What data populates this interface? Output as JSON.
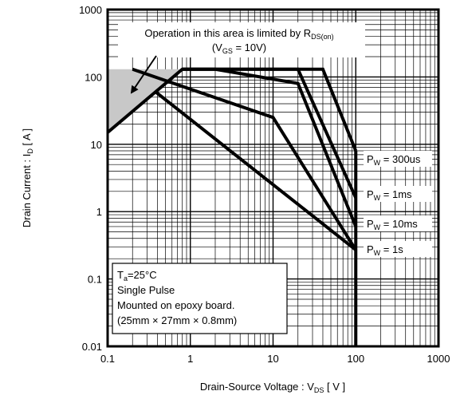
{
  "chart_data": {
    "type": "line",
    "title": "",
    "xlabel": {
      "main": "Drain-Source  Voltage : V",
      "sub": "DS",
      "unit": " [ V ]"
    },
    "ylabel": {
      "main": "Drain  Current  :  I",
      "sub": "D",
      "unit": "  [ A ]"
    },
    "xscale": "log",
    "yscale": "log",
    "xlim": [
      0.1,
      1000
    ],
    "ylim": [
      0.01,
      1000
    ],
    "grid": true,
    "x_ticks": [
      0.1,
      1,
      10,
      100,
      1000
    ],
    "x_tick_labels": [
      "0.1",
      "1",
      "10",
      "100",
      "1000"
    ],
    "y_ticks": [
      0.01,
      0.1,
      1,
      10,
      100,
      1000
    ],
    "y_tick_labels": [
      "0.01",
      "0.1",
      "1",
      "10",
      "100",
      "1000"
    ],
    "series": [
      {
        "label": {
          "main": "P",
          "sub": "W",
          "rest": " = 300us"
        },
        "points": [
          [
            0.1,
            15
          ],
          [
            0.8,
            130
          ],
          [
            40,
            130
          ],
          [
            100,
            8
          ]
        ]
      },
      {
        "label": {
          "main": "P",
          "sub": "W",
          "rest": " = 1ms"
        },
        "points": [
          [
            0.8,
            130
          ],
          [
            20,
            130
          ],
          [
            100,
            1.6
          ]
        ]
      },
      {
        "label": {
          "main": "P",
          "sub": "W",
          "rest": " = 10ms"
        },
        "points": [
          [
            0.8,
            130
          ],
          [
            2,
            130
          ],
          [
            20,
            80
          ],
          [
            100,
            0.6
          ]
        ]
      },
      {
        "label": {
          "main": "P",
          "sub": "W",
          "rest": " = 1s"
        },
        "points": [
          [
            0.2,
            130
          ],
          [
            10,
            25
          ],
          [
            100,
            0.27
          ]
        ]
      },
      {
        "label": null,
        "points": [
          [
            0.38,
            60
          ],
          [
            100,
            0.27
          ]
        ]
      },
      {
        "label": null,
        "points": [
          [
            100,
            8
          ],
          [
            100,
            0.01
          ]
        ]
      }
    ],
    "rds_region": {
      "points": [
        [
          0.1,
          15
        ],
        [
          0.8,
          130
        ],
        [
          0.1,
          130
        ]
      ],
      "fill": "#c8c8c8"
    },
    "annotations": {
      "rds_line1": {
        "main": "Operation in this area is limited by R",
        "sub": "DS(on)"
      },
      "rds_line2": {
        "open": "(V",
        "sub": "GS",
        "rest": " = 10V)"
      },
      "conditions": [
        {
          "main": "T",
          "sub": "a",
          "rest": "=25°C"
        },
        {
          "main": "Single Pulse",
          "sub": "",
          "rest": ""
        },
        {
          "main": "Mounted on epoxy board.",
          "sub": "",
          "rest": ""
        },
        {
          "main": "(25mm  ×  27mm  ×  0.8mm)",
          "sub": "",
          "rest": ""
        }
      ]
    },
    "colors": {
      "line": "#000000",
      "grid": "#000000",
      "region": "#c8c8c8"
    }
  }
}
